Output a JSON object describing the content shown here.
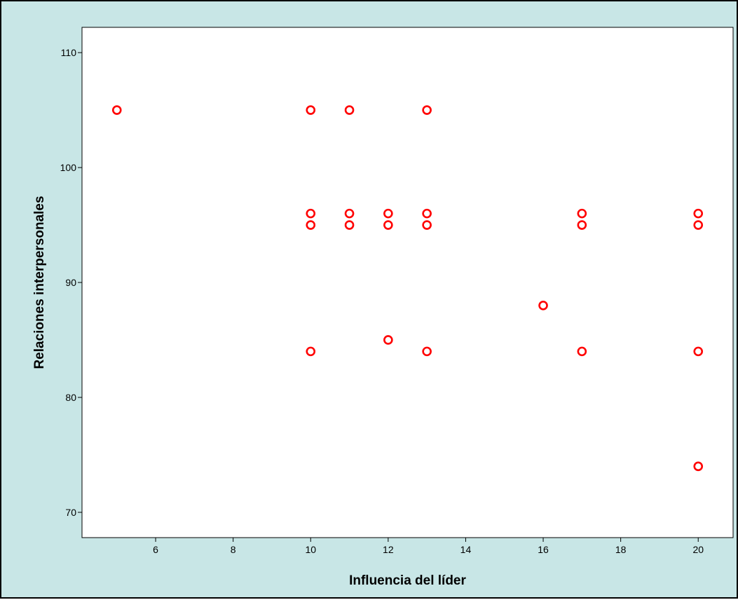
{
  "chart_data": {
    "type": "scatter",
    "title": "",
    "xlabel": "Influencia del líder",
    "ylabel": "Relaciones interpersonales",
    "xlim": [
      4.1,
      20.9
    ],
    "ylim": [
      67.8,
      112.2
    ],
    "xticks": [
      6,
      8,
      10,
      12,
      14,
      16,
      18,
      20
    ],
    "yticks": [
      70,
      80,
      90,
      100,
      110
    ],
    "grid": false,
    "marker_color": "#ff0000",
    "plot_background": "#ffffff",
    "outer_background": "#c8e6e6",
    "points": [
      {
        "x": 5,
        "y": 105
      },
      {
        "x": 10,
        "y": 105
      },
      {
        "x": 11,
        "y": 105
      },
      {
        "x": 13,
        "y": 105
      },
      {
        "x": 10,
        "y": 96
      },
      {
        "x": 11,
        "y": 96
      },
      {
        "x": 12,
        "y": 96
      },
      {
        "x": 13,
        "y": 96
      },
      {
        "x": 17,
        "y": 96
      },
      {
        "x": 20,
        "y": 96
      },
      {
        "x": 10,
        "y": 95
      },
      {
        "x": 11,
        "y": 95
      },
      {
        "x": 12,
        "y": 95
      },
      {
        "x": 13,
        "y": 95
      },
      {
        "x": 17,
        "y": 95
      },
      {
        "x": 20,
        "y": 95
      },
      {
        "x": 16,
        "y": 88
      },
      {
        "x": 10,
        "y": 84
      },
      {
        "x": 12,
        "y": 85
      },
      {
        "x": 13,
        "y": 84
      },
      {
        "x": 17,
        "y": 84
      },
      {
        "x": 20,
        "y": 84
      },
      {
        "x": 20,
        "y": 74
      }
    ]
  }
}
